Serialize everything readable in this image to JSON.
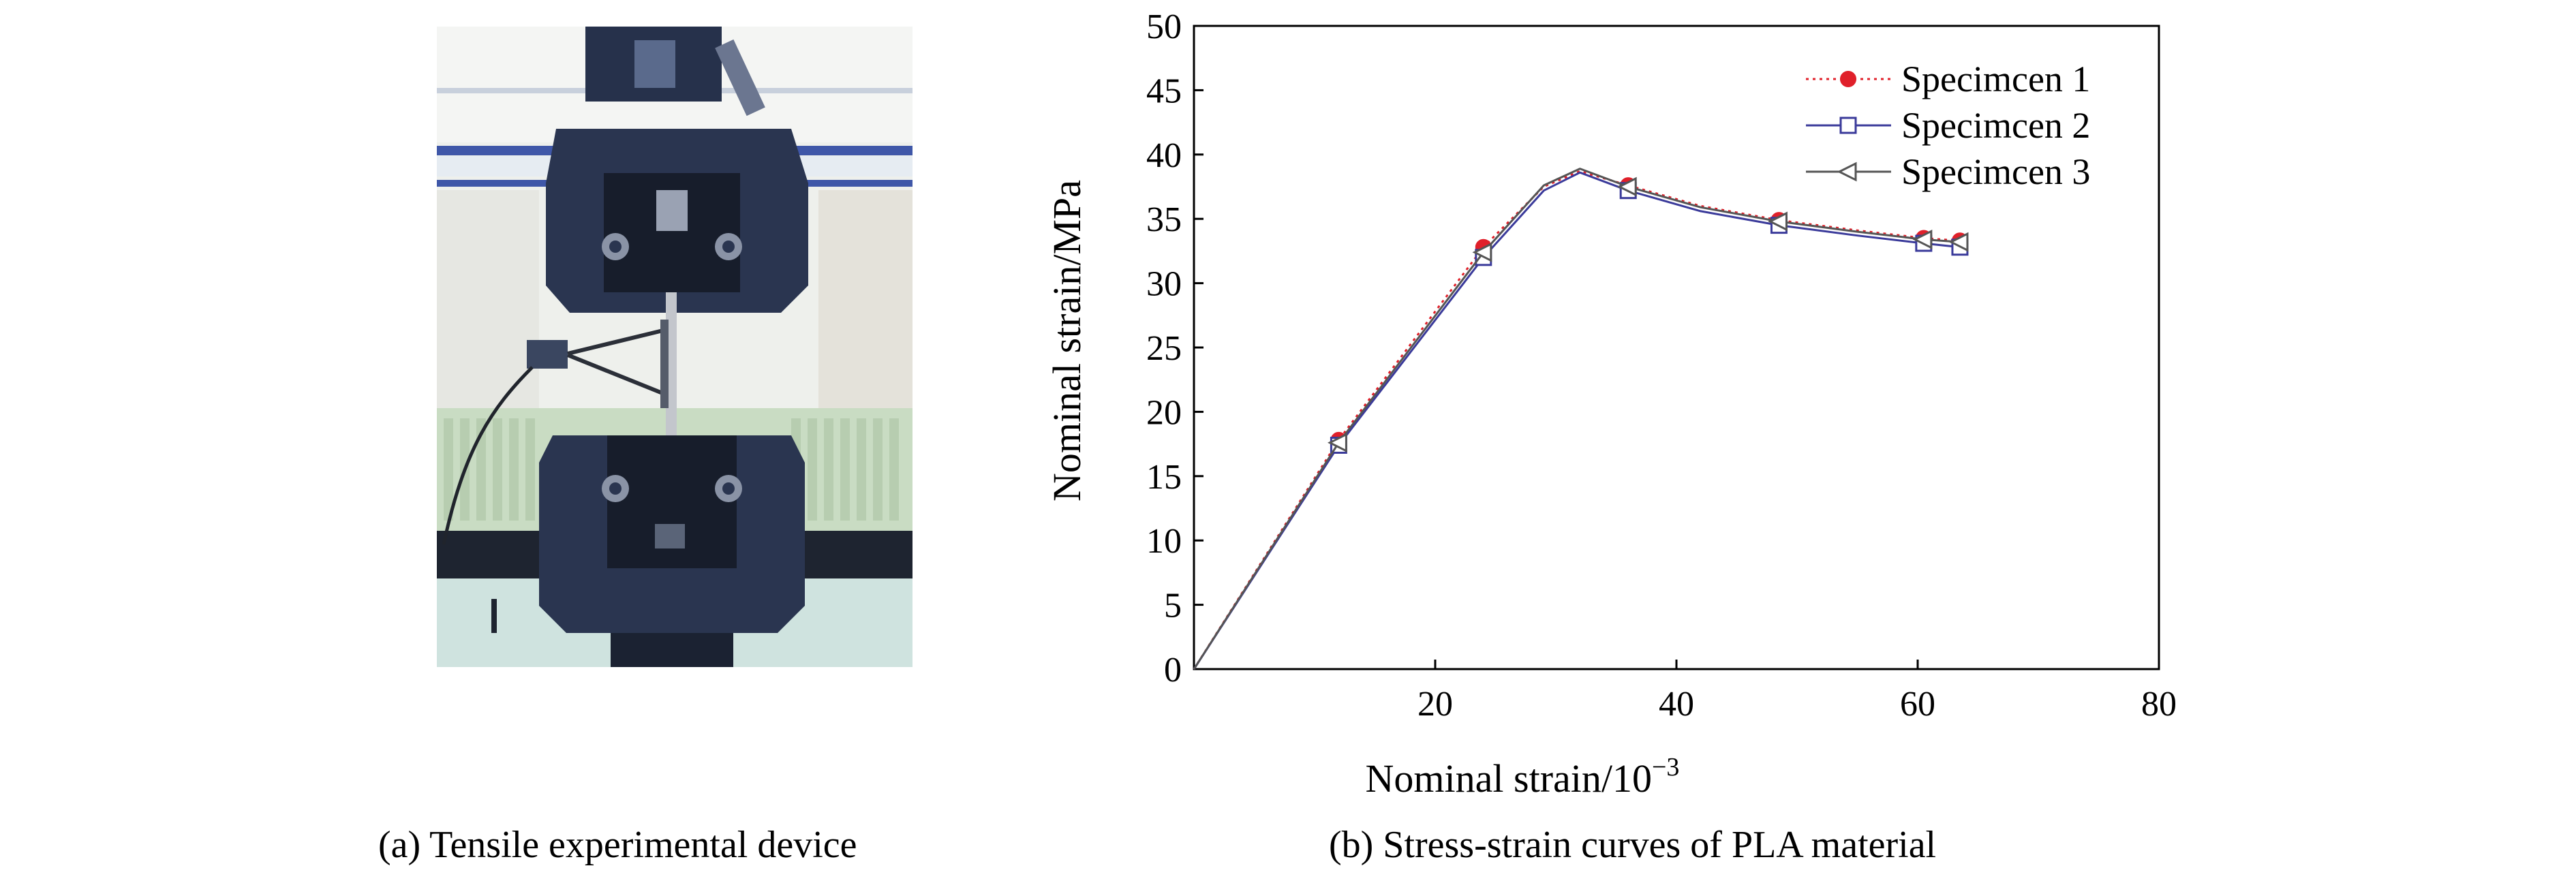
{
  "panel_a": {
    "caption": "(a) Tensile experimental device"
  },
  "panel_b": {
    "caption": "(b) Stress-strain curves of PLA material"
  },
  "colors": {
    "series1": "#e0202a",
    "series2": "#3a3a9a",
    "series3": "#555555",
    "machine_body": "#2a3550",
    "background_wall": "#eef0ec",
    "window_blue": "#3f57a8",
    "radiator": "#c9dcc3"
  },
  "chart_data": {
    "type": "line",
    "xlabel": "Nominal strain/10",
    "xlabel_superscript": "−3",
    "ylabel": "Nominal strain/MPa",
    "xlim": [
      0,
      80
    ],
    "ylim": [
      0,
      50
    ],
    "x_ticks": [
      20,
      40,
      60,
      80
    ],
    "y_ticks": [
      0,
      5,
      10,
      15,
      20,
      25,
      30,
      35,
      40,
      45,
      50
    ],
    "grid": false,
    "legend_position": "top-right",
    "series": [
      {
        "name": "Specimcen 1",
        "marker": "filled-circle",
        "line_style": "dotted",
        "x": [
          0,
          12,
          24,
          29,
          32,
          36,
          42,
          48.5,
          55,
          60.5,
          63.5
        ],
        "y": [
          0,
          17.8,
          32.8,
          37.5,
          38.7,
          37.6,
          36.0,
          34.9,
          34.1,
          33.5,
          33.3
        ],
        "markers_x": [
          12,
          24,
          36,
          48.5,
          60.5,
          63.5
        ],
        "markers_y": [
          17.8,
          32.8,
          37.6,
          34.9,
          33.5,
          33.3
        ]
      },
      {
        "name": "Specimcen 2",
        "marker": "open-square",
        "line_style": "solid",
        "x": [
          0,
          12,
          24,
          29,
          32,
          36,
          42,
          48.5,
          55,
          60.5,
          63.5
        ],
        "y": [
          0,
          17.4,
          32.0,
          37.2,
          38.6,
          37.2,
          35.6,
          34.5,
          33.7,
          33.1,
          32.8
        ],
        "markers_x": [
          12,
          24,
          36,
          48.5,
          60.5,
          63.5
        ],
        "markers_y": [
          17.4,
          32.0,
          37.2,
          34.5,
          33.1,
          32.8
        ]
      },
      {
        "name": "Specimcen 3",
        "marker": "open-left-triangle",
        "line_style": "solid",
        "x": [
          0,
          12,
          24,
          29,
          32,
          36,
          42,
          48.5,
          55,
          60.5,
          63.5
        ],
        "y": [
          0,
          17.6,
          32.4,
          37.6,
          38.9,
          37.5,
          35.9,
          34.8,
          34.0,
          33.4,
          33.2
        ],
        "markers_x": [
          12,
          24,
          36,
          48.5,
          60.5,
          63.5
        ],
        "markers_y": [
          17.6,
          32.4,
          37.5,
          34.8,
          33.4,
          33.2
        ]
      }
    ]
  }
}
